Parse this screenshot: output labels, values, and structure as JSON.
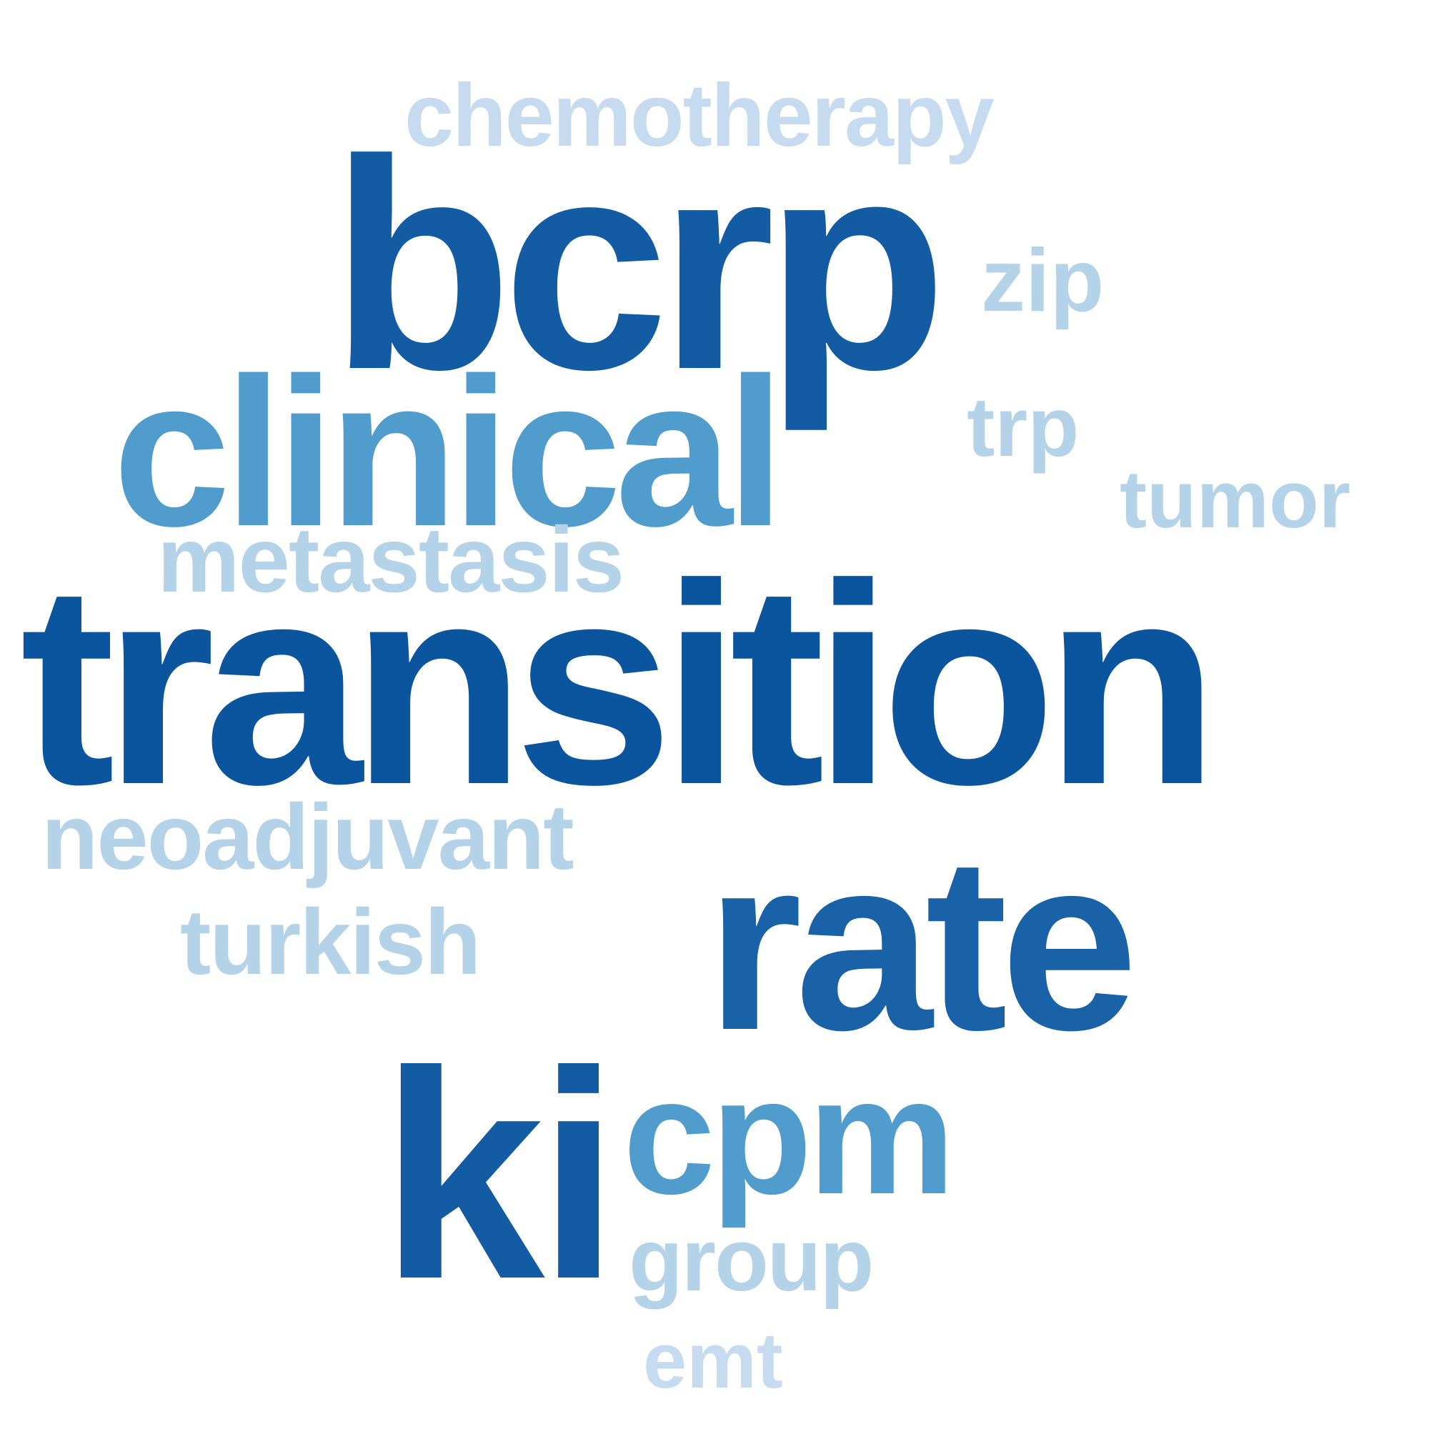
{
  "words": {
    "chemotherapy": {
      "text": "chemotherapy",
      "color": "#c6dbef"
    },
    "bcrp": {
      "text": "bcrp",
      "color": "#135ca4"
    },
    "zip": {
      "text": "zip",
      "color": "#b4d3e8"
    },
    "clinical": {
      "text": "clinical",
      "color": "#509ccc"
    },
    "trp": {
      "text": "trp",
      "color": "#b4d3e8"
    },
    "tumor": {
      "text": "tumor",
      "color": "#b4d3e8"
    },
    "metastasis": {
      "text": "metastasis",
      "color": "#b4d3e8"
    },
    "transition": {
      "text": "transition",
      "color": "#0b559f"
    },
    "neoadjuvant": {
      "text": "neoadjuvant",
      "color": "#b4d3e8"
    },
    "turkish": {
      "text": "turkish",
      "color": "#b4d3e8"
    },
    "rate": {
      "text": "rate",
      "color": "#1a62a8"
    },
    "ki": {
      "text": "ki",
      "color": "#135ca4"
    },
    "cpm": {
      "text": "cpm",
      "color": "#509ccc"
    },
    "group": {
      "text": "group",
      "color": "#b4d3e8"
    },
    "emt": {
      "text": "emt",
      "color": "#c6dbef"
    }
  }
}
